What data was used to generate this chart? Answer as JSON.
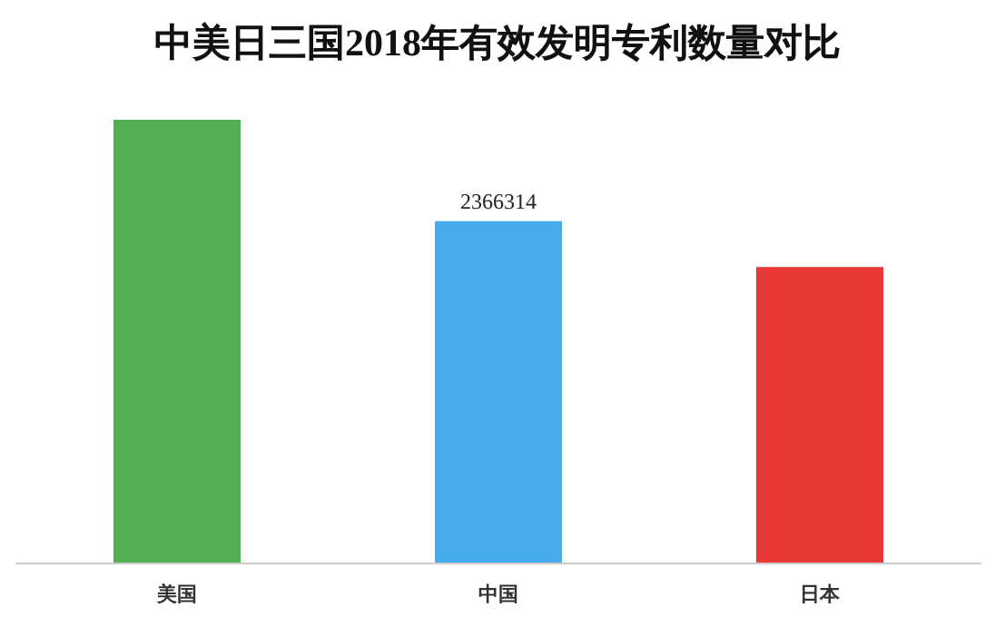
{
  "chart_data": {
    "type": "bar",
    "title": "中美日三国2018年有效发明专利数量对比",
    "categories": [
      "美国",
      "中国",
      "日本"
    ],
    "values": [
      3070000,
      2366314,
      2050000
    ],
    "colors": [
      "#52b054",
      "#46acec",
      "#e83836"
    ],
    "value_labels": [
      null,
      "2366314",
      null
    ],
    "grid": false
  }
}
